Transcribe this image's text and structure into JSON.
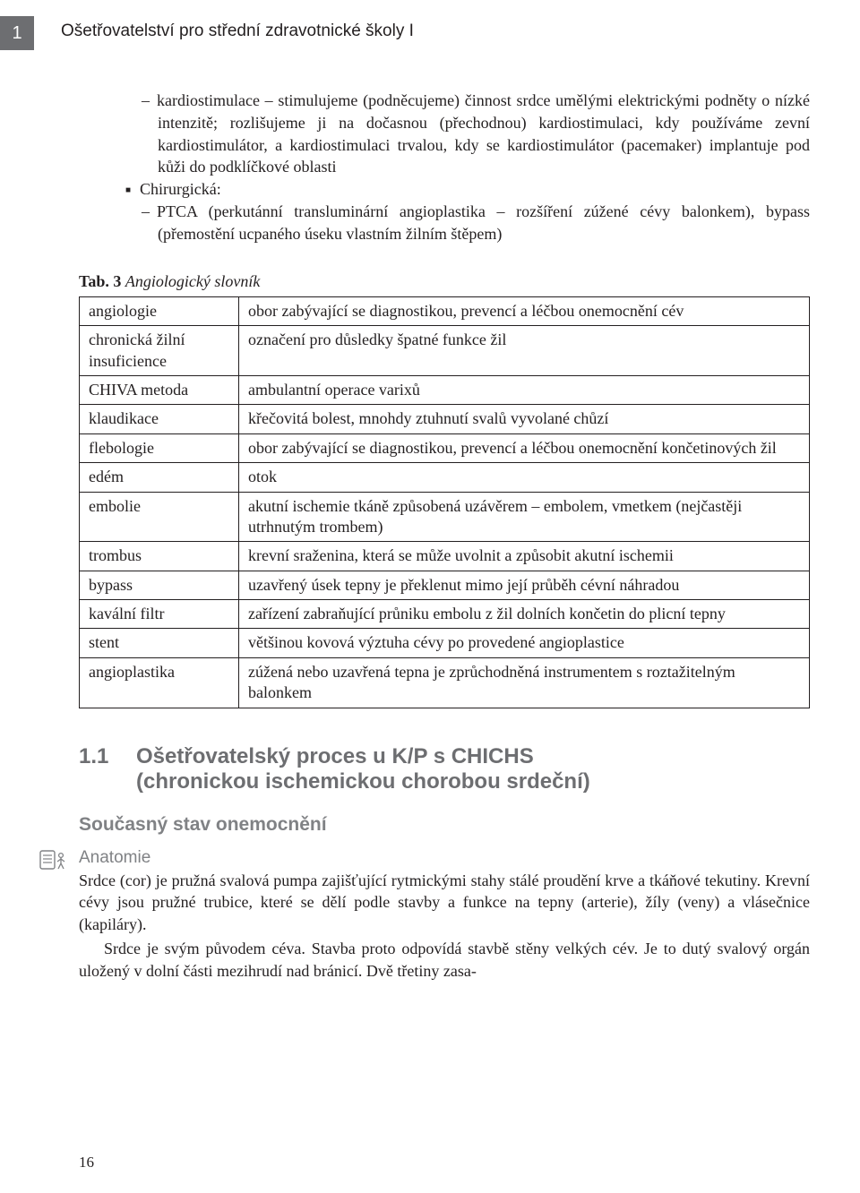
{
  "colors": {
    "tab_bg": "#6d6e71",
    "tab_fg": "#ffffff",
    "text": "#231f20",
    "heading_gray": "#6d6e71",
    "sub_gray": "#808285",
    "border": "#231f20",
    "background": "#ffffff"
  },
  "fonts": {
    "serif": "Minion Pro / Times New Roman",
    "sans": "Myriad Pro / Arial",
    "body_size_pt": 11,
    "heading_size_pt": 15,
    "sub_size_pt": 13
  },
  "page": {
    "tab_number": "1",
    "running_head": "Ošetřovatelství pro střední zdravotnické školy  I",
    "page_number": "16"
  },
  "list": {
    "item1": "kardiostimulace – stimulujeme (podněcujeme) činnost srdce umělými elektrickými podněty o nízké intenzitě; rozlišujeme ji na dočasnou (přechodnou) kardiostimulaci, kdy používáme zevní kardiostimulátor, a kardiostimulaci trvalou, kdy se kardiostimulátor (pacemaker) implantuje pod kůži do podklíčkové oblasti",
    "item2": "Chirurgická:",
    "item3": "PTCA (perkutánní transluminární angioplastika – rozšíření zúžené cévy balonkem), bypass (přemostění ucpaného úseku vlastním žilním štěpem)"
  },
  "table": {
    "caption_label": "Tab. 3",
    "caption_title": "Angiologický slovník",
    "rows": [
      {
        "term": "angiologie",
        "def": "obor zabývající se diagnostikou, prevencí a léčbou onemocnění cév"
      },
      {
        "term": "chronická žilní insuficience",
        "def": "označení pro důsledky špatné funkce žil"
      },
      {
        "term": "CHIVA metoda",
        "def": "ambulantní operace varixů"
      },
      {
        "term": "klaudikace",
        "def": "křečovitá bolest, mnohdy ztuhnutí svalů vyvolané chůzí"
      },
      {
        "term": "flebologie",
        "def": "obor zabývající se diagnostikou, prevencí a léčbou onemocnění končetinových žil"
      },
      {
        "term": "edém",
        "def": "otok"
      },
      {
        "term": "embolie",
        "def": "akutní ischemie tkáně způsobená uzávěrem – embolem, vmetkem (nejčastěji utrhnutým trombem)"
      },
      {
        "term": "trombus",
        "def": "krevní sraženina, která se může uvolnit a způsobit akutní ischemii"
      },
      {
        "term": "bypass",
        "def": "uzavřený úsek tepny je překlenut mimo její průběh cévní náhradou"
      },
      {
        "term": "kavální filtr",
        "def": "zařízení zabraňující průniku embolu z žil dolních končetin do plicní tepny"
      },
      {
        "term": "stent",
        "def": "většinou kovová výztuha cévy po provedené angioplastice"
      },
      {
        "term": "angioplastika",
        "def": "zúžená nebo uzavřená tepna je zprůchodněná instrumentem s roztažitelným balonkem"
      }
    ]
  },
  "section": {
    "number": "1.1",
    "title_line1": "Ošetřovatelský proces u K/P s CHICHS",
    "title_line2": "(chronickou ischemickou chorobou srdeční)",
    "sub1": "Současný stav onemocnění",
    "sub2": "Anatomie",
    "para1": "Srdce (cor) je pružná svalová pumpa zajišťující rytmickými stahy stálé proudění krve a tkáňové tekutiny. Krevní cévy jsou pružné trubice, které se dělí podle stavby a funkce na tepny (arterie), žíly (veny) a vlásečnice (kapiláry).",
    "para2": "Srdce je svým původem céva. Stavba proto odpovídá stavbě stěny velkých cév. Je to dutý svalový orgán uložený v dolní části mezihrudí nad bránicí. Dvě třetiny zasa-"
  }
}
